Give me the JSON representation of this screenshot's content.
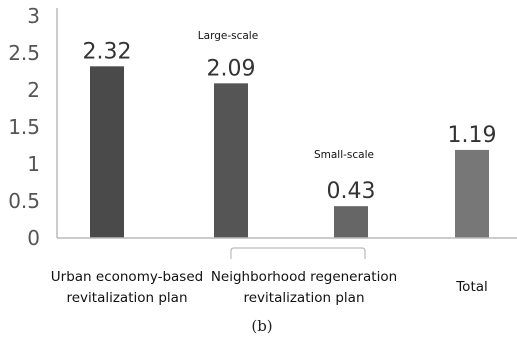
{
  "chart_data": {
    "type": "bar",
    "categories": [
      "Urban economy-based revitalization plan",
      "Large-scale",
      "Small-scale",
      "Total"
    ],
    "values": [
      2.32,
      2.09,
      0.43,
      1.19
    ],
    "value_labels": [
      "2.32",
      "2.09",
      "0.43",
      "1.19"
    ],
    "ylim": [
      0,
      3
    ],
    "yticks": [
      "0",
      "0.5",
      "1",
      "1.5",
      "2",
      "2.5",
      "3"
    ],
    "grid": false,
    "bar_colors": [
      "#4a4a4a",
      "#555555",
      "#666666",
      "#777777"
    ],
    "group_labels": {
      "urban": [
        "Urban economy-based",
        "revitalization plan"
      ],
      "neighborhood": [
        "Neighborhood regeneration",
        "revitalization plan"
      ],
      "total": [
        "Total"
      ]
    },
    "annotations": {
      "large": "Large-scale",
      "small": "Small-scale"
    },
    "caption": "(b)"
  }
}
